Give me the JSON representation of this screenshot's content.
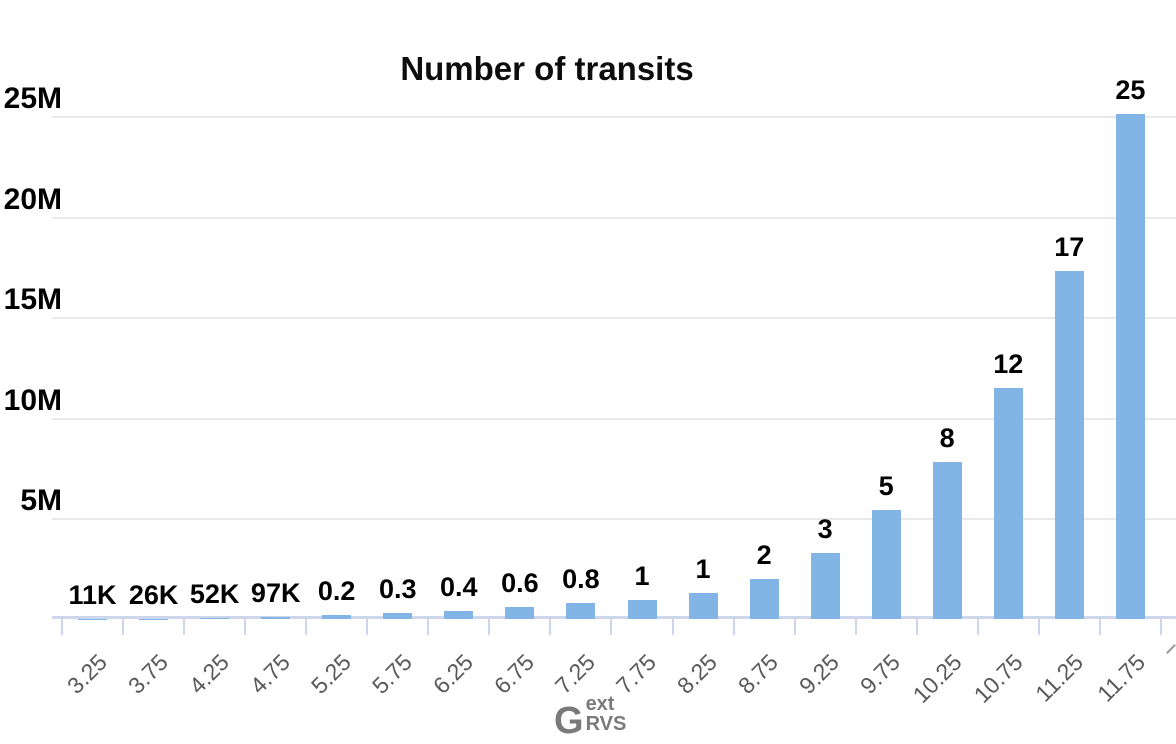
{
  "title": "Number of transits",
  "colors": {
    "bar": "#82b4e6",
    "axis_line": "#cdd6ea",
    "gridline": "#e9e9e9",
    "x_tick_label": "#595959",
    "axis_label_gray": "#7a7a7a",
    "text": "#000000"
  },
  "x_axis_label": {
    "main": "G",
    "sup": "ext",
    "sub": "RVS"
  },
  "chart_data": {
    "type": "bar",
    "title": "Number of transits",
    "xlabel": "G_RVS^ext",
    "ylabel": "",
    "ylim": [
      0,
      26
    ],
    "grid": true,
    "legend": false,
    "y_ticks": [
      {
        "value": 5,
        "label": "5M"
      },
      {
        "value": 10,
        "label": "10M"
      },
      {
        "value": 15,
        "label": "15M"
      },
      {
        "value": 20,
        "label": "20M"
      },
      {
        "value": 25,
        "label": "25M"
      }
    ],
    "categories": [
      "3.25",
      "3.75",
      "4.25",
      "4.75",
      "5.25",
      "5.75",
      "6.25",
      "6.75",
      "7.25",
      "7.75",
      "8.25",
      "8.75",
      "9.25",
      "9.75",
      "10.25",
      "10.75",
      "11.25",
      "11.75"
    ],
    "bar_value_labels": [
      "11K",
      "26K",
      "52K",
      "97K",
      "0.2",
      "0.3",
      "0.4",
      "0.6",
      "0.8",
      "1",
      "1",
      "2",
      "3",
      "5",
      "8",
      "12",
      "17",
      "25"
    ],
    "values_millions": [
      0.011,
      0.026,
      0.052,
      0.097,
      0.2,
      0.3,
      0.4,
      0.6,
      0.8,
      0.95,
      1.3,
      2.0,
      3.3,
      5.4,
      7.8,
      11.5,
      17.3,
      25.1
    ]
  }
}
